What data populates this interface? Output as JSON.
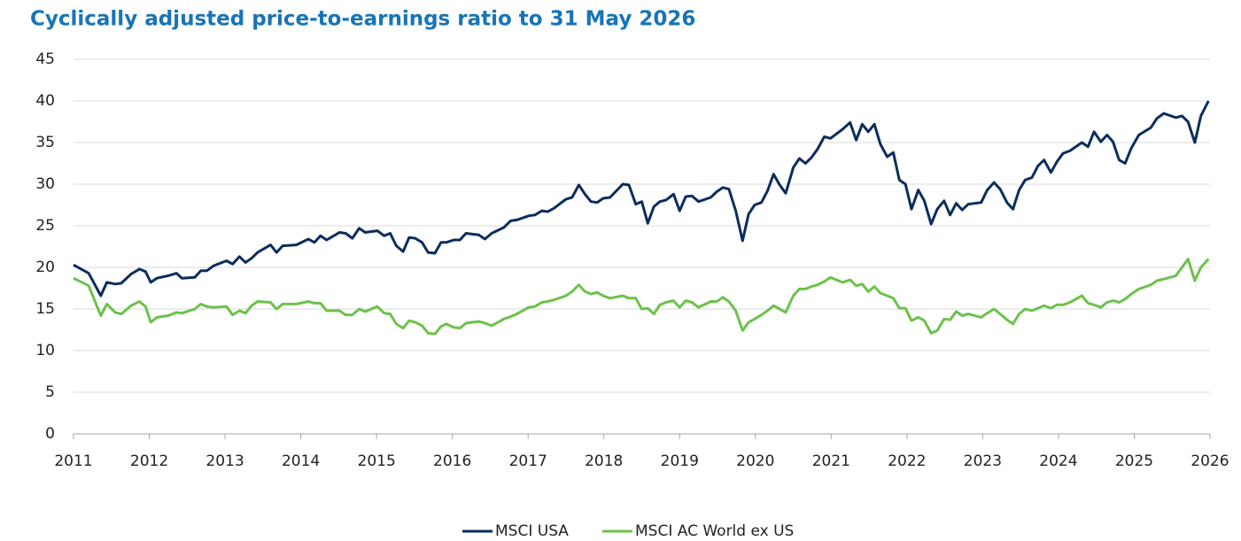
{
  "chart_data": {
    "type": "line",
    "title": "Cyclically adjusted price-to-earnings ratio to 31 May 2026",
    "x": [
      2011.0,
      2011.2,
      2011.36,
      2011.44,
      2011.55,
      2011.63,
      2011.76,
      2011.87,
      2011.95,
      2012.02,
      2012.1,
      2012.25,
      2012.36,
      2012.43,
      2012.6,
      2012.68,
      2012.76,
      2012.85,
      2013.02,
      2013.1,
      2013.19,
      2013.27,
      2013.35,
      2013.43,
      2013.6,
      2013.68,
      2013.76,
      2013.94,
      2014.1,
      2014.18,
      2014.26,
      2014.34,
      2014.51,
      2014.59,
      2014.68,
      2014.77,
      2014.85,
      2015.01,
      2015.1,
      2015.18,
      2015.26,
      2015.35,
      2015.43,
      2015.51,
      2015.6,
      2015.68,
      2015.77,
      2015.85,
      2015.92,
      2016.02,
      2016.1,
      2016.18,
      2016.26,
      2016.35,
      2016.43,
      2016.52,
      2016.68,
      2016.77,
      2016.85,
      2017.01,
      2017.09,
      2017.18,
      2017.26,
      2017.34,
      2017.5,
      2017.58,
      2017.67,
      2017.75,
      2017.83,
      2017.91,
      2017.99,
      2018.08,
      2018.25,
      2018.33,
      2018.42,
      2018.5,
      2018.58,
      2018.66,
      2018.74,
      2018.82,
      2018.92,
      2019.0,
      2019.08,
      2019.16,
      2019.25,
      2019.41,
      2019.49,
      2019.57,
      2019.65,
      2019.74,
      2019.83,
      2019.91,
      2019.99,
      2020.08,
      2020.16,
      2020.24,
      2020.32,
      2020.4,
      2020.5,
      2020.58,
      2020.66,
      2020.74,
      2020.82,
      2020.91,
      2020.99,
      2021.15,
      2021.25,
      2021.33,
      2021.41,
      2021.49,
      2021.57,
      2021.65,
      2021.74,
      2021.82,
      2021.9,
      2021.98,
      2022.06,
      2022.15,
      2022.23,
      2022.32,
      2022.4,
      2022.49,
      2022.57,
      2022.65,
      2022.73,
      2022.81,
      2022.98,
      2023.06,
      2023.15,
      2023.23,
      2023.32,
      2023.4,
      2023.48,
      2023.56,
      2023.65,
      2023.73,
      2023.81,
      2023.9,
      2023.98,
      2024.06,
      2024.15,
      2024.31,
      2024.39,
      2024.47,
      2024.56,
      2024.64,
      2024.72,
      2024.8,
      2024.88,
      2024.96,
      2025.06,
      2025.22,
      2025.3,
      2025.39,
      2025.55,
      2025.63,
      2025.71,
      2025.8,
      2025.88,
      2025.98
    ],
    "series": [
      {
        "name": "MSCI USA",
        "color": "#0b2d5e",
        "values": [
          20.3,
          19.3,
          16.6,
          18.2,
          18.0,
          18.1,
          19.2,
          19.8,
          19.5,
          18.2,
          18.7,
          19.0,
          19.3,
          18.7,
          18.8,
          19.6,
          19.6,
          20.2,
          20.8,
          20.4,
          21.3,
          20.6,
          21.1,
          21.8,
          22.7,
          21.8,
          22.6,
          22.7,
          23.4,
          23.0,
          23.8,
          23.3,
          24.2,
          24.1,
          23.5,
          24.7,
          24.2,
          24.4,
          23.8,
          24.1,
          22.6,
          21.9,
          23.6,
          23.5,
          23.0,
          21.8,
          21.7,
          23.0,
          23.0,
          23.3,
          23.3,
          24.1,
          24.0,
          23.9,
          23.4,
          24.1,
          24.8,
          25.6,
          25.7,
          26.2,
          26.3,
          26.8,
          26.7,
          27.1,
          28.2,
          28.4,
          29.9,
          28.8,
          27.9,
          27.8,
          28.3,
          28.4,
          30.0,
          29.9,
          27.6,
          27.9,
          25.3,
          27.3,
          27.9,
          28.1,
          28.8,
          26.8,
          28.5,
          28.6,
          27.9,
          28.4,
          29.1,
          29.6,
          29.4,
          26.8,
          23.2,
          26.4,
          27.5,
          27.8,
          29.2,
          31.2,
          29.9,
          28.9,
          32.0,
          33.1,
          32.5,
          33.2,
          34.2,
          35.7,
          35.5,
          36.6,
          37.4,
          35.3,
          37.2,
          36.3,
          37.2,
          34.8,
          33.3,
          33.8,
          30.5,
          30.0,
          27.0,
          29.3,
          28.0,
          25.2,
          27.0,
          28.0,
          26.3,
          27.7,
          26.9,
          27.6,
          27.8,
          29.3,
          30.2,
          29.4,
          27.8,
          27.0,
          29.3,
          30.5,
          30.8,
          32.2,
          32.9,
          31.4,
          32.7,
          33.7,
          34.0,
          35.0,
          34.5,
          36.3,
          35.1,
          35.9,
          35.1,
          32.9,
          32.5,
          34.3,
          35.9,
          36.8,
          37.9,
          38.5,
          38.0,
          38.2,
          37.5,
          35.0,
          38.2,
          40.0
        ]
      },
      {
        "name": "MSCI AC World ex US",
        "color": "#6cc24a",
        "values": [
          18.7,
          17.8,
          14.2,
          15.6,
          14.6,
          14.4,
          15.4,
          15.9,
          15.3,
          13.4,
          14.0,
          14.2,
          14.6,
          14.5,
          15.0,
          15.6,
          15.3,
          15.2,
          15.3,
          14.3,
          14.8,
          14.5,
          15.4,
          15.9,
          15.8,
          15.0,
          15.6,
          15.6,
          15.9,
          15.7,
          15.7,
          14.8,
          14.8,
          14.3,
          14.3,
          15.0,
          14.7,
          15.3,
          14.5,
          14.4,
          13.2,
          12.7,
          13.6,
          13.4,
          13.0,
          12.1,
          12.0,
          12.9,
          13.2,
          12.8,
          12.7,
          13.3,
          13.4,
          13.5,
          13.3,
          13.0,
          13.8,
          14.1,
          14.4,
          15.2,
          15.3,
          15.8,
          15.9,
          16.1,
          16.6,
          17.1,
          17.9,
          17.1,
          16.8,
          17.0,
          16.6,
          16.3,
          16.6,
          16.3,
          16.3,
          15.0,
          15.1,
          14.4,
          15.5,
          15.8,
          16.0,
          15.2,
          16.0,
          15.8,
          15.2,
          15.9,
          15.9,
          16.4,
          15.9,
          14.8,
          12.4,
          13.4,
          13.8,
          14.3,
          14.8,
          15.4,
          15.0,
          14.6,
          16.6,
          17.4,
          17.4,
          17.7,
          17.9,
          18.3,
          18.8,
          18.2,
          18.5,
          17.8,
          18.0,
          17.1,
          17.7,
          16.9,
          16.6,
          16.3,
          15.1,
          15.1,
          13.6,
          14.0,
          13.6,
          12.1,
          12.4,
          13.8,
          13.7,
          14.7,
          14.2,
          14.4,
          14.0,
          14.5,
          15.0,
          14.4,
          13.7,
          13.2,
          14.4,
          15.0,
          14.8,
          15.1,
          15.4,
          15.1,
          15.5,
          15.5,
          15.8,
          16.6,
          15.7,
          15.5,
          15.2,
          15.8,
          16.0,
          15.8,
          16.2,
          16.8,
          17.4,
          17.9,
          18.4,
          18.6,
          19.0,
          20.0,
          21.0,
          18.4,
          20.0,
          21.0
        ]
      }
    ],
    "xlim": [
      2011,
      2026
    ],
    "xticks": [
      2011,
      2012,
      2013,
      2014,
      2015,
      2016,
      2017,
      2018,
      2019,
      2020,
      2021,
      2022,
      2023,
      2024,
      2025,
      2026
    ],
    "ylim": [
      0,
      45
    ],
    "yticks": [
      0,
      5,
      10,
      15,
      20,
      25,
      30,
      35,
      40,
      45
    ],
    "grid": true,
    "legend": "bottom"
  }
}
